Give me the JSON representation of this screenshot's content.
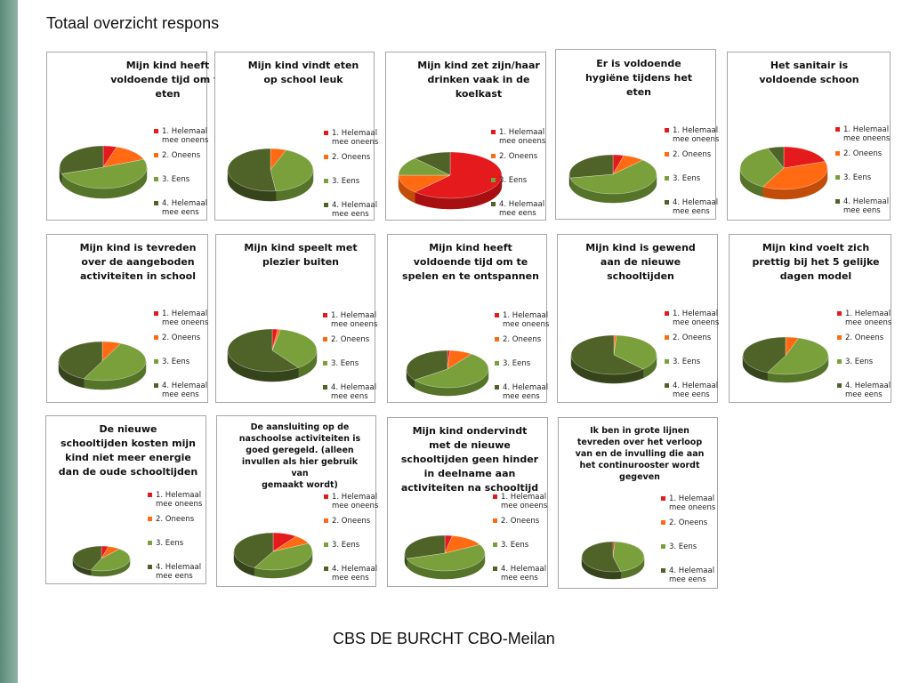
{
  "page": {
    "title": "Totaal overzicht respons",
    "footer": "CBS DE BURCHT CBO-Meilan"
  },
  "legend_labels": [
    "1. Helemaal mee oneens",
    "2. Oneens",
    "3. Eens",
    "4. Helemaal mee eens"
  ],
  "colors": {
    "helemaal_oneens": "#e41a1c",
    "oneens": "#ff6a13",
    "eens": "#7aa03c",
    "helemaal_eens": "#4f6228"
  },
  "chart_data": [
    {
      "type": "pie",
      "title": "Mijn kind heeft voldoende tijd om te eten",
      "categories": [
        "1. Helemaal mee oneens",
        "2. Oneens",
        "3. Eens",
        "4. Helemaal mee eens"
      ],
      "values": [
        5,
        14,
        51,
        30
      ]
    },
    {
      "type": "pie",
      "title": "Mijn kind vindt eten op school leuk",
      "categories": [
        "1. Helemaal mee oneens",
        "2. Oneens",
        "3. Eens",
        "4. Helemaal mee eens"
      ],
      "values": [
        0,
        6,
        42,
        52
      ]
    },
    {
      "type": "pie",
      "title": "Mijn kind zet zijn/haar drinken vaak in de koelkast",
      "categories": [
        "1. Helemaal mee oneens",
        "2. Oneens",
        "3. Eens",
        "4. Helemaal mee eens"
      ],
      "values": [
        62,
        13,
        13,
        12
      ]
    },
    {
      "type": "pie",
      "title": "Er is voldoende hygiëne tijdens het eten",
      "categories": [
        "1. Helemaal mee oneens",
        "2. Oneens",
        "3. Eens",
        "4. Helemaal mee eens"
      ],
      "values": [
        4,
        8,
        60,
        28
      ]
    },
    {
      "type": "pie",
      "title": "Het sanitair is voldoende schoon",
      "categories": [
        "1. Helemaal mee oneens",
        "2. Oneens",
        "3. Eens",
        "4. Helemaal mee eens"
      ],
      "values": [
        20,
        38,
        36,
        6
      ]
    },
    {
      "type": "pie",
      "title": "Mijn kind is tevreden over de aangeboden activiteiten in school",
      "categories": [
        "1. Helemaal mee oneens",
        "2. Oneens",
        "3. Eens",
        "4. Helemaal mee eens"
      ],
      "values": [
        0,
        7,
        50,
        43
      ]
    },
    {
      "type": "pie",
      "title": "Mijn kind speelt met plezier buiten",
      "categories": [
        "1. Helemaal mee oneens",
        "2. Oneens",
        "3. Eens",
        "4. Helemaal mee eens"
      ],
      "values": [
        2,
        1,
        37,
        60
      ]
    },
    {
      "type": "pie",
      "title": "Mijn kind heeft voldoende tijd om te spelen en te ontspannen",
      "categories": [
        "1. Helemaal mee oneens",
        "2. Oneens",
        "3. Eens",
        "4. Helemaal mee eens"
      ],
      "values": [
        1,
        9,
        55,
        35
      ]
    },
    {
      "type": "pie",
      "title": "Mijn kind is gewend aan de nieuwe schooltijden",
      "categories": [
        "1. Helemaal mee oneens",
        "2. Oneens",
        "3. Eens",
        "4. Helemaal mee eens"
      ],
      "values": [
        0,
        1,
        37,
        62
      ]
    },
    {
      "type": "pie",
      "title": "Mijn kind voelt zich prettig bij het 5 gelijke dagen model",
      "categories": [
        "1. Helemaal mee oneens",
        "2. Oneens",
        "3. Eens",
        "4. Helemaal mee eens"
      ],
      "values": [
        0,
        5,
        52,
        43
      ]
    },
    {
      "type": "pie",
      "title": "De nieuwe schooltijden kosten mijn kind niet meer energie dan de oude schooltijden",
      "categories": [
        "1. Helemaal mee oneens",
        "2. Oneens",
        "3. Eens",
        "4. Helemaal mee eens"
      ],
      "values": [
        4,
        7,
        45,
        44
      ]
    },
    {
      "type": "pie",
      "title": "De aansluiting op de naschoolse activiteiten is goed geregeld. (alleen invullen als hier gebruik van gemaakt wordt)",
      "categories": [
        "1. Helemaal mee oneens",
        "2. Oneens",
        "3. Eens",
        "4. Helemaal mee eens"
      ],
      "values": [
        10,
        8,
        40,
        42
      ]
    },
    {
      "type": "pie",
      "title": "Mijn kind ondervindt met de nieuwe schooltijden geen hinder in deelname aan activiteiten na schooltijd",
      "categories": [
        "1. Helemaal mee oneens",
        "2. Oneens",
        "3. Eens",
        "4. Helemaal mee eens"
      ],
      "values": [
        3,
        14,
        53,
        30
      ]
    },
    {
      "type": "pie",
      "title": "Ik ben in grote lijnen tevreden over het verloop van en de invulling die aan het continurooster wordt gegeven",
      "categories": [
        "1. Helemaal mee oneens",
        "2. Oneens",
        "3. Eens",
        "4. Helemaal mee eens"
      ],
      "values": [
        1,
        0,
        45,
        54
      ]
    }
  ]
}
